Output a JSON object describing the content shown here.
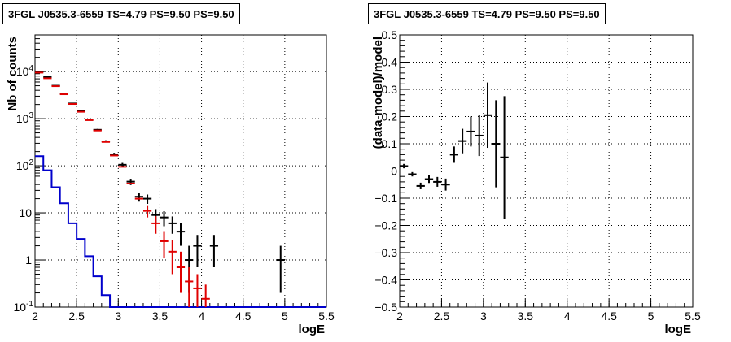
{
  "panels": {
    "left": {
      "title": "3FGL J0535.3-6559 TS=4.79 PS=9.50 PS=9.50"
    },
    "right": {
      "title": "3FGL J0535.3-6559 TS=4.79 PS=9.50 PS=9.50"
    }
  },
  "colors": {
    "data": "#000000",
    "model": "#e00000",
    "component": "#0000cc",
    "grid": "#000000"
  },
  "chart_data": [
    {
      "type": "scatter",
      "title": "3FGL J0535.3-6559 TS=4.79 PS=9.50 PS=9.50",
      "xlabel": "logE",
      "ylabel": "Nb of counts",
      "xlim": [
        2,
        5.5
      ],
      "ylim": [
        0.1,
        60000
      ],
      "yscale": "log",
      "grid": true,
      "x_ticks": [
        "2",
        "2.5",
        "3",
        "3.5",
        "4",
        "4.5",
        "5",
        "5.5"
      ],
      "y_ticks": [
        {
          "value": 0.1,
          "label": "10",
          "exp": "-1"
        },
        {
          "value": 1,
          "label": "1",
          "exp": ""
        },
        {
          "value": 10,
          "label": "10",
          "exp": ""
        },
        {
          "value": 100,
          "label": "10",
          "exp": "2"
        },
        {
          "value": 1000,
          "label": "10",
          "exp": "3"
        },
        {
          "value": 10000,
          "label": "10",
          "exp": "4"
        }
      ],
      "series": [
        {
          "type": "errorbar",
          "x": [
            2.05,
            2.15,
            2.25,
            2.35,
            2.45,
            2.55,
            2.65,
            2.75,
            2.85,
            2.95,
            3.05,
            3.15,
            3.25,
            3.35,
            3.45,
            3.55,
            3.65,
            3.75,
            3.85,
            3.95,
            4.15,
            4.95
          ],
          "y": [
            9800,
            7600,
            5000,
            3400,
            2100,
            1450,
            950,
            580,
            330,
            175,
            105,
            46,
            22,
            20,
            9,
            8,
            6,
            4,
            1,
            2,
            2,
            1
          ],
          "yerr_low": [
            100,
            90,
            70,
            60,
            45,
            38,
            30,
            24,
            18,
            13,
            10,
            7,
            4.7,
            4.5,
            3,
            2.8,
            2.4,
            2,
            0.8,
            1.3,
            1.3,
            0.8
          ],
          "yerr_high": [
            100,
            90,
            70,
            60,
            45,
            38,
            30,
            24,
            18,
            13,
            10,
            7,
            4.7,
            4.5,
            3,
            2.8,
            2.4,
            2,
            1,
            1.4,
            1.4,
            1
          ]
        },
        {
          "type": "errorbar",
          "x": [
            2.05,
            2.15,
            2.25,
            2.35,
            2.45,
            2.55,
            2.65,
            2.75,
            2.85,
            2.95,
            3.05,
            3.15,
            3.25,
            3.35,
            3.45,
            3.55,
            3.65,
            3.75,
            3.85,
            3.95,
            4.05
          ],
          "y": [
            9500,
            7200,
            4900,
            3300,
            2050,
            1400,
            930,
            560,
            320,
            165,
            95,
            42,
            20,
            11,
            6,
            2.5,
            1.5,
            0.7,
            0.35,
            0.25,
            0.15
          ],
          "yerr_low": [
            0,
            0,
            0,
            0,
            0,
            0,
            0,
            0,
            0,
            0,
            0,
            0,
            0,
            3,
            2.4,
            1.4,
            1.0,
            0.5,
            0.25,
            0.17,
            0.1
          ],
          "yerr_high": [
            0,
            0,
            0,
            0,
            0,
            0,
            0,
            0,
            0,
            0,
            0,
            0,
            0,
            3.5,
            2.5,
            1.6,
            1.2,
            0.8,
            0.35,
            0.25,
            0.15
          ]
        },
        {
          "type": "step",
          "edges": [
            2.0,
            2.1,
            2.2,
            2.3,
            2.4,
            2.5,
            2.6,
            2.7,
            2.8,
            2.9,
            3.0,
            5.5
          ],
          "values": [
            160,
            80,
            35,
            16,
            6,
            2.8,
            1.2,
            0.45,
            0.18,
            0.1,
            0.1
          ]
        }
      ]
    },
    {
      "type": "scatter",
      "title": "3FGL J0535.3-6559 TS=4.79 PS=9.50 PS=9.50",
      "xlabel": "logE",
      "ylabel": "(data-model)/model",
      "xlim": [
        2,
        5.5
      ],
      "ylim": [
        -0.5,
        0.5
      ],
      "grid": true,
      "x_ticks": [
        "2",
        "2.5",
        "3",
        "3.5",
        "4",
        "4.5",
        "5",
        "5.5"
      ],
      "y_ticks": [
        "−0.5",
        "−0.4",
        "−0.3",
        "−0.2",
        "−0.1",
        "0",
        "0.1",
        "0.2",
        "0.3",
        "0.4",
        "0.5"
      ],
      "series": [
        {
          "type": "errorbar",
          "x": [
            2.05,
            2.15,
            2.25,
            2.35,
            2.45,
            2.55,
            2.65,
            2.75,
            2.85,
            2.95,
            3.05,
            3.15,
            3.25
          ],
          "y": [
            0.018,
            -0.012,
            -0.055,
            -0.03,
            -0.04,
            -0.05,
            0.06,
            0.11,
            0.145,
            0.13,
            0.205,
            0.1,
            0.05
          ],
          "yerr": [
            0.008,
            0.008,
            0.012,
            0.014,
            0.018,
            0.022,
            0.03,
            0.045,
            0.055,
            0.075,
            0.12,
            0.16,
            0.225
          ]
        }
      ]
    }
  ]
}
